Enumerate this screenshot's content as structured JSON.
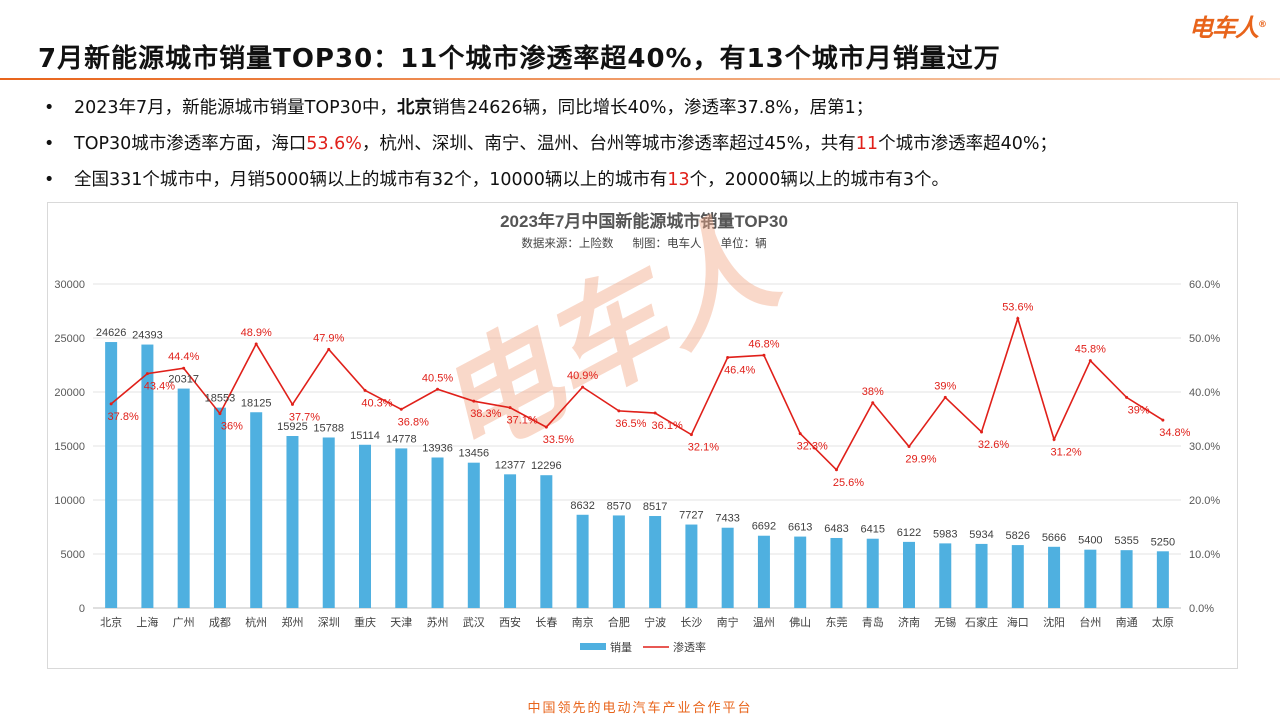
{
  "header": {
    "logo": "电车人",
    "title": "7月新能源城市销量TOP30：11个城市渗透率超40%，有13个城市月销量过万"
  },
  "bullets": [
    [
      {
        "t": "2023年7月，新能源城市销量TOP30中，"
      },
      {
        "t": "北京",
        "s": "b"
      },
      {
        "t": "销售24626辆，同比增长40%，渗透率37.8%，居第1；"
      }
    ],
    [
      {
        "t": "TOP30城市渗透率方面，海口"
      },
      {
        "t": "53.6%",
        "s": "hl"
      },
      {
        "t": "，杭州、深圳、南宁、温州、台州等城市渗透率超过45%，共有"
      },
      {
        "t": "11",
        "s": "hl"
      },
      {
        "t": "个城市渗透率超40%；"
      }
    ],
    [
      {
        "t": "全国331个城市中，月销5000辆以上的城市有32个，10000辆以上的城市有"
      },
      {
        "t": "13",
        "s": "hl"
      },
      {
        "t": "个，20000辆以上的城市有3个。"
      }
    ]
  ],
  "colors": {
    "accent": "#e8641b",
    "bar": "#4fb0e0",
    "line": "#e0201a",
    "highlight": "#e0201a"
  },
  "chart_data": {
    "type": "bar+line",
    "title": "2023年7月中国新能源城市销量TOP30",
    "subtitle": "数据来源：上险数      制图：电车人      单位：辆",
    "watermark": "电车人",
    "categories": [
      "北京",
      "上海",
      "广州",
      "成都",
      "杭州",
      "郑州",
      "深圳",
      "重庆",
      "天津",
      "苏州",
      "武汉",
      "西安",
      "长春",
      "南京",
      "合肥",
      "宁波",
      "长沙",
      "南宁",
      "温州",
      "佛山",
      "东莞",
      "青岛",
      "济南",
      "无锡",
      "石家庄",
      "海口",
      "沈阳",
      "台州",
      "南通",
      "太原"
    ],
    "series": [
      {
        "name": "销量",
        "type": "bar",
        "axis": "left",
        "values": [
          24626,
          24393,
          20317,
          18553,
          18125,
          15925,
          15788,
          15114,
          14778,
          13936,
          13456,
          12377,
          12296,
          8632,
          8570,
          8517,
          7727,
          7433,
          6692,
          6613,
          6483,
          6415,
          6122,
          5983,
          5934,
          5826,
          5666,
          5400,
          5355,
          5250
        ]
      },
      {
        "name": "渗透率",
        "type": "line",
        "axis": "right",
        "values": [
          37.8,
          43.4,
          44.4,
          36,
          48.9,
          37.7,
          47.9,
          40.3,
          36.8,
          40.5,
          38.3,
          37.1,
          33.5,
          40.9,
          36.5,
          36.1,
          32.1,
          46.4,
          46.8,
          32.3,
          25.6,
          38,
          29.9,
          39,
          32.6,
          53.6,
          31.2,
          45.8,
          39,
          34.8
        ]
      }
    ],
    "y_left": {
      "range": [
        0,
        30000
      ],
      "ticks": [
        "0",
        "5000",
        "10000",
        "15000",
        "20000",
        "25000",
        "30000"
      ]
    },
    "y_right": {
      "range": [
        0,
        60
      ],
      "ticks": [
        "0.0%",
        "10.0%",
        "20.0%",
        "30.0%",
        "40.0%",
        "50.0%",
        "60.0%"
      ]
    },
    "grid": true,
    "legend": "bottom"
  },
  "footer": "中国领先的电动汽车产业合作平台"
}
